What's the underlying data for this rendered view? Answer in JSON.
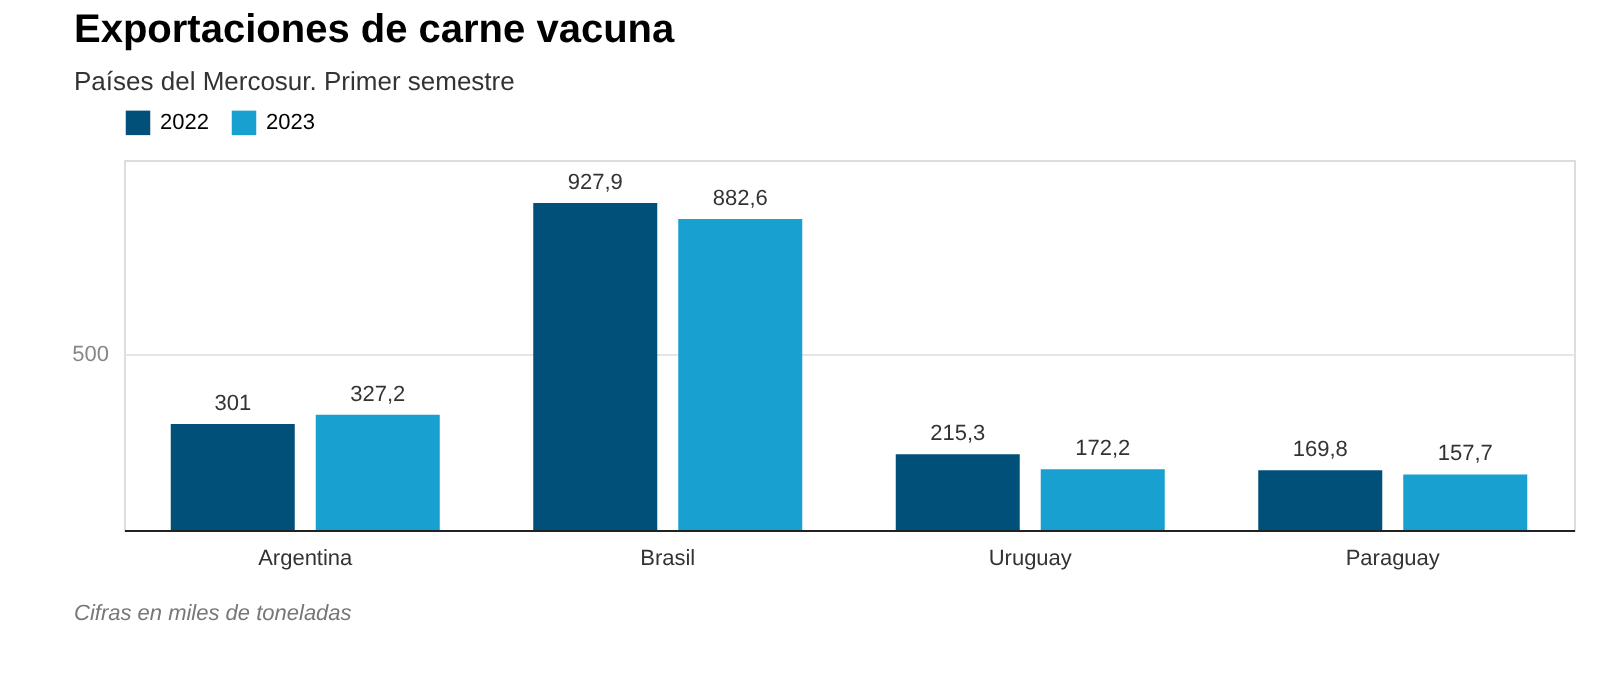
{
  "chart_data": {
    "type": "bar",
    "title": "Exportaciones de carne vacuna",
    "subtitle": "Países del Mercosur. Primer semestre",
    "categories": [
      "Argentina",
      "Brasil",
      "Uruguay",
      "Paraguay"
    ],
    "series": [
      {
        "name": "2022",
        "color": "#005079",
        "values": [
          301,
          927.9,
          215.3,
          169.8
        ],
        "value_labels": [
          "301",
          "927,9",
          "215,3",
          "169,8"
        ]
      },
      {
        "name": "2023",
        "color": "#17a0d0",
        "values": [
          327.2,
          882.6,
          172.2,
          157.7
        ],
        "value_labels": [
          "327,2",
          "882,6",
          "172,2",
          "157,7"
        ]
      }
    ],
    "ylim": [
      0,
      1050
    ],
    "yticks": [
      500
    ],
    "grid": "y",
    "legend": "top left",
    "annotations": [
      "Cifras en miles de toneladas"
    ]
  }
}
